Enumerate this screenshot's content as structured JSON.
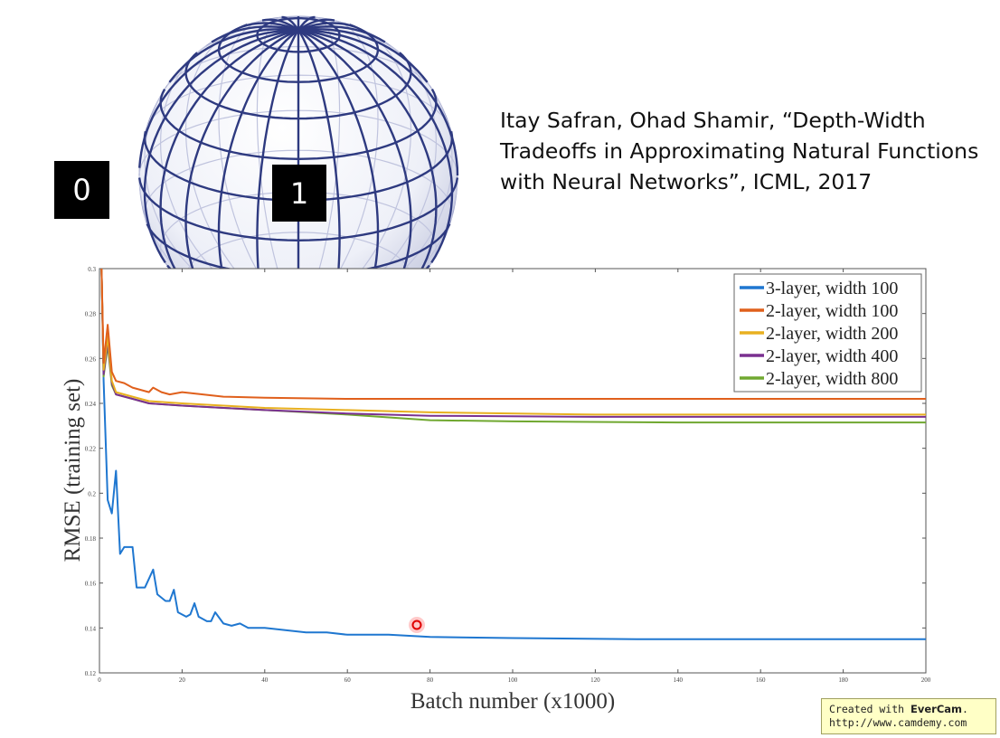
{
  "citation": {
    "lines": [
      "Itay Safran, Ohad Shamir, “Depth-Width",
      "Tradeoffs in Approximating Natural Functions",
      "with Neural Networks”, ICML, 2017"
    ]
  },
  "badges": {
    "zero": "0",
    "one": "1"
  },
  "watermark": {
    "created_with": "Created with ",
    "brand": "EverCam",
    "period": ".",
    "url": "http://www.camdemy.com"
  },
  "chart_data": {
    "type": "line",
    "xlabel": "Batch number (x1000)",
    "ylabel": "RMSE (training set)",
    "xlim": [
      0,
      200
    ],
    "ylim": [
      0.12,
      0.3
    ],
    "xticks": [
      0,
      20,
      40,
      60,
      80,
      100,
      120,
      140,
      160,
      180,
      200
    ],
    "yticks": [
      0.12,
      0.14,
      0.16,
      0.18,
      0.2,
      0.22,
      0.24,
      0.26,
      0.28,
      0.3
    ],
    "grid": false,
    "legend_position": "top-right",
    "series": [
      {
        "name": "3-layer, width 100",
        "color": "#1f77d0",
        "points": [
          [
            0.5,
            0.3
          ],
          [
            1,
            0.25
          ],
          [
            2,
            0.197
          ],
          [
            3,
            0.191
          ],
          [
            4,
            0.21
          ],
          [
            5,
            0.173
          ],
          [
            6,
            0.176
          ],
          [
            8,
            0.176
          ],
          [
            9,
            0.158
          ],
          [
            11,
            0.158
          ],
          [
            13,
            0.166
          ],
          [
            14,
            0.155
          ],
          [
            16,
            0.152
          ],
          [
            17,
            0.152
          ],
          [
            18,
            0.157
          ],
          [
            19,
            0.147
          ],
          [
            21,
            0.145
          ],
          [
            22,
            0.146
          ],
          [
            23,
            0.151
          ],
          [
            24,
            0.145
          ],
          [
            26,
            0.143
          ],
          [
            27,
            0.143
          ],
          [
            28,
            0.147
          ],
          [
            30,
            0.142
          ],
          [
            32,
            0.141
          ],
          [
            34,
            0.142
          ],
          [
            36,
            0.14
          ],
          [
            40,
            0.14
          ],
          [
            45,
            0.139
          ],
          [
            50,
            0.138
          ],
          [
            55,
            0.138
          ],
          [
            60,
            0.137
          ],
          [
            70,
            0.137
          ],
          [
            80,
            0.136
          ],
          [
            100,
            0.1355
          ],
          [
            130,
            0.135
          ],
          [
            160,
            0.135
          ],
          [
            200,
            0.135
          ]
        ]
      },
      {
        "name": "2-layer, width 100",
        "color": "#e0601c",
        "points": [
          [
            0.5,
            0.3
          ],
          [
            1,
            0.258
          ],
          [
            2,
            0.275
          ],
          [
            3,
            0.254
          ],
          [
            4,
            0.25
          ],
          [
            6,
            0.249
          ],
          [
            8,
            0.247
          ],
          [
            10,
            0.246
          ],
          [
            12,
            0.245
          ],
          [
            13,
            0.247
          ],
          [
            15,
            0.245
          ],
          [
            17,
            0.244
          ],
          [
            20,
            0.245
          ],
          [
            25,
            0.244
          ],
          [
            30,
            0.243
          ],
          [
            40,
            0.2425
          ],
          [
            60,
            0.242
          ],
          [
            100,
            0.242
          ],
          [
            150,
            0.242
          ],
          [
            200,
            0.242
          ]
        ]
      },
      {
        "name": "2-layer, width 200",
        "color": "#e8b020",
        "points": [
          [
            0.5,
            0.3
          ],
          [
            1,
            0.255
          ],
          [
            2,
            0.27
          ],
          [
            3,
            0.25
          ],
          [
            4,
            0.245
          ],
          [
            8,
            0.243
          ],
          [
            12,
            0.241
          ],
          [
            20,
            0.24
          ],
          [
            30,
            0.239
          ],
          [
            40,
            0.238
          ],
          [
            60,
            0.237
          ],
          [
            80,
            0.236
          ],
          [
            120,
            0.235
          ],
          [
            160,
            0.235
          ],
          [
            200,
            0.235
          ]
        ]
      },
      {
        "name": "2-layer, width 400",
        "color": "#7a3090",
        "points": [
          [
            0.5,
            0.3
          ],
          [
            1,
            0.253
          ],
          [
            2,
            0.268
          ],
          [
            3,
            0.249
          ],
          [
            4,
            0.244
          ],
          [
            8,
            0.242
          ],
          [
            12,
            0.24
          ],
          [
            20,
            0.239
          ],
          [
            30,
            0.238
          ],
          [
            40,
            0.237
          ],
          [
            60,
            0.2355
          ],
          [
            80,
            0.2345
          ],
          [
            120,
            0.234
          ],
          [
            160,
            0.234
          ],
          [
            200,
            0.234
          ]
        ]
      },
      {
        "name": "2-layer, width 800",
        "color": "#70a830",
        "points": [
          [
            0.5,
            0.3
          ],
          [
            1,
            0.252
          ],
          [
            2,
            0.266
          ],
          [
            3,
            0.248
          ],
          [
            4,
            0.244
          ],
          [
            8,
            0.242
          ],
          [
            12,
            0.24
          ],
          [
            20,
            0.239
          ],
          [
            30,
            0.238
          ],
          [
            40,
            0.237
          ],
          [
            60,
            0.235
          ],
          [
            80,
            0.2325
          ],
          [
            100,
            0.232
          ],
          [
            140,
            0.2315
          ],
          [
            200,
            0.2315
          ]
        ]
      }
    ]
  }
}
